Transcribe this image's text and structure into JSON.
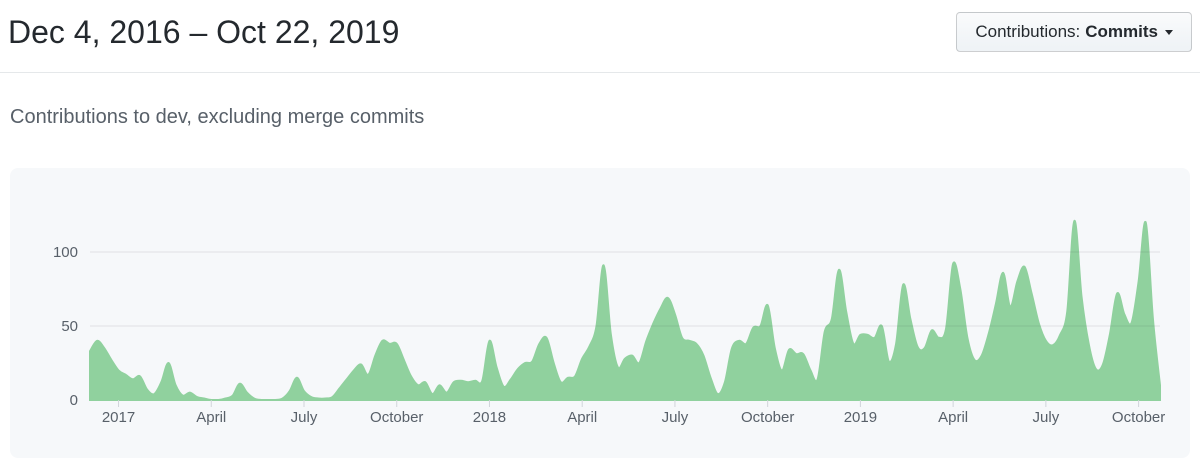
{
  "header": {
    "title": "Dec 4, 2016 – Oct 22, 2019",
    "filter_button": {
      "label_prefix": "Contributions:",
      "selected_option": "Commits"
    }
  },
  "subtitle": "Contributions to dev, excluding merge commits",
  "chart_data": {
    "type": "area",
    "x_interval": "weekly",
    "x_range": [
      "Dec 4, 2016",
      "Oct 22, 2019"
    ],
    "series": [
      {
        "name": "Commits",
        "values": [
          33,
          40,
          35,
          27,
          20,
          17,
          14,
          16,
          7,
          4,
          12,
          25,
          10,
          3,
          5,
          2,
          1,
          0,
          0,
          1,
          3,
          11,
          5,
          1,
          0,
          0,
          0,
          1,
          6,
          15,
          6,
          2,
          1,
          1,
          2,
          8,
          14,
          20,
          24,
          17,
          30,
          40,
          38,
          38,
          27,
          16,
          10,
          12,
          4,
          10,
          5,
          12,
          13,
          12,
          13,
          13,
          40,
          22,
          9,
          14,
          21,
          25,
          26,
          38,
          42,
          25,
          12,
          15,
          16,
          28,
          36,
          50,
          91,
          45,
          22,
          28,
          30,
          25,
          40,
          52,
          62,
          69,
          58,
          42,
          40,
          38,
          30,
          15,
          4,
          12,
          35,
          40,
          38,
          49,
          50,
          64,
          35,
          20,
          34,
          31,
          31,
          20,
          14,
          46,
          55,
          88,
          60,
          38,
          44,
          44,
          42,
          50,
          26,
          38,
          78,
          55,
          36,
          35,
          47,
          42,
          48,
          92,
          75,
          42,
          27,
          30,
          45,
          65,
          86,
          63,
          80,
          90,
          72,
          52,
          40,
          37,
          44,
          60,
          121,
          70,
          38,
          21,
          24,
          45,
          72,
          58,
          52,
          80,
          120,
          55,
          10
        ]
      }
    ],
    "x_ticks": [
      {
        "week": 4,
        "label": "2017"
      },
      {
        "week": 17,
        "label": "April"
      },
      {
        "week": 30,
        "label": "July"
      },
      {
        "week": 43,
        "label": "October"
      },
      {
        "week": 56,
        "label": "2018"
      },
      {
        "week": 69,
        "label": "April"
      },
      {
        "week": 82,
        "label": "July"
      },
      {
        "week": 95,
        "label": "October"
      },
      {
        "week": 108,
        "label": "2019"
      },
      {
        "week": 121,
        "label": "April"
      },
      {
        "week": 134,
        "label": "July"
      },
      {
        "week": 147,
        "label": "October"
      }
    ],
    "y_ticks": [
      0,
      50,
      100
    ],
    "ylim": [
      0,
      150
    ],
    "grid": true,
    "legend": false,
    "colors": {
      "area": "#90d19e",
      "axis_text": "#586069",
      "grid_line": "#1b1f23",
      "tick_line": "#d1d5da"
    }
  }
}
